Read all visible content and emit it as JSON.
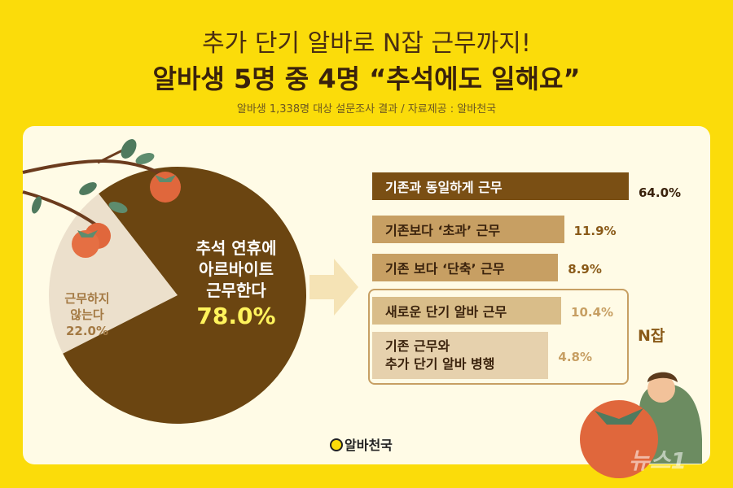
{
  "header": {
    "title_line1": "추가 단기 알바로 N잡 근무까지!",
    "title_line2": "알바생 5명 중 4명 “추석에도 일해요”",
    "subtitle": "알바생 1,338명 대상 설문조사 결과 / 자료제공 : 알바천국"
  },
  "chart_data": [
    {
      "type": "pie",
      "slices": [
        {
          "label_lines": [
            "추석 연휴에",
            "아르바이트",
            "근무한다"
          ],
          "value": 78.0,
          "value_label": "78.0%",
          "color": "#6b4511"
        },
        {
          "label_lines": [
            "근무하지",
            "않는다"
          ],
          "value": 22.0,
          "value_label": "22.0%",
          "color": "#ece0cc"
        }
      ]
    },
    {
      "type": "bar",
      "orientation": "horizontal",
      "bars": [
        {
          "label_lines": [
            "기존과 동일하게 근무"
          ],
          "value": 64.0,
          "value_label": "64.0%",
          "color": "#7a4f14"
        },
        {
          "label_lines": [
            "기존보다 ‘초과’ 근무"
          ],
          "value": 11.9,
          "value_label": "11.9%",
          "color": "#c79f63"
        },
        {
          "label_lines": [
            "기존 보다 ‘단축’ 근무"
          ],
          "value": 8.9,
          "value_label": "8.9%",
          "color": "#c79f63"
        },
        {
          "label_lines": [
            "새로운 단기 알바 근무"
          ],
          "value": 10.4,
          "value_label": "10.4%",
          "color": "#d9bd89"
        },
        {
          "label_lines": [
            "기존 근무와",
            "추가 단기 알바 병행"
          ],
          "value": 4.8,
          "value_label": "4.8%",
          "color": "#e6d1ad"
        }
      ],
      "group": {
        "label": "N잡",
        "members": [
          3,
          4
        ]
      }
    }
  ],
  "logo": {
    "text": "알바천국"
  },
  "watermark": {
    "text": "뉴스1"
  }
}
